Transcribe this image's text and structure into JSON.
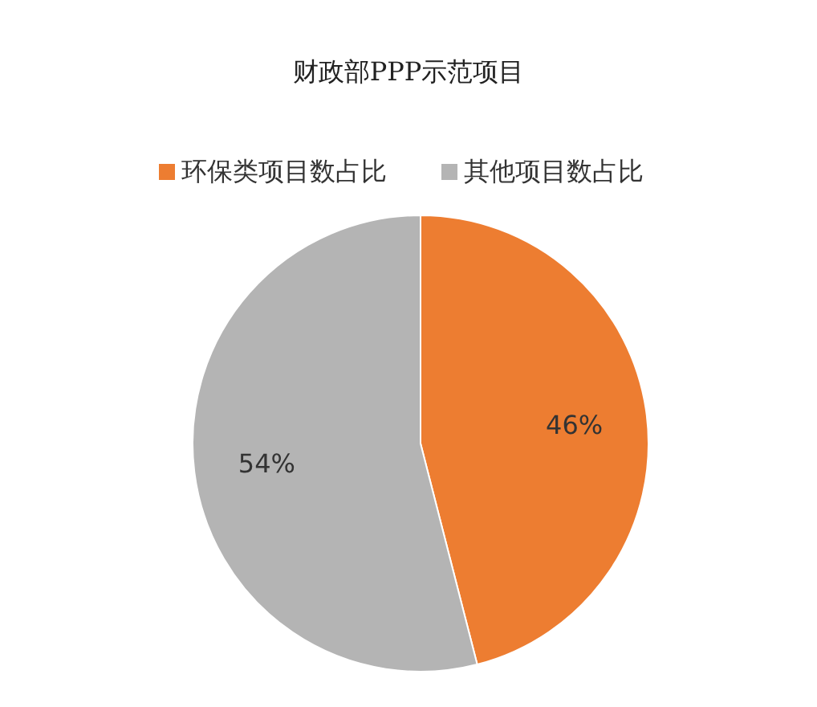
{
  "chart_data": {
    "type": "pie",
    "title": "财政部PPP示范项目",
    "categories": [
      "环保类项目数占比",
      "其他项目数占比"
    ],
    "values": [
      46,
      54
    ],
    "value_labels": [
      "46%",
      "54%"
    ],
    "colors": [
      "#ed7d31",
      "#b4b4b4"
    ],
    "legend": "top"
  }
}
